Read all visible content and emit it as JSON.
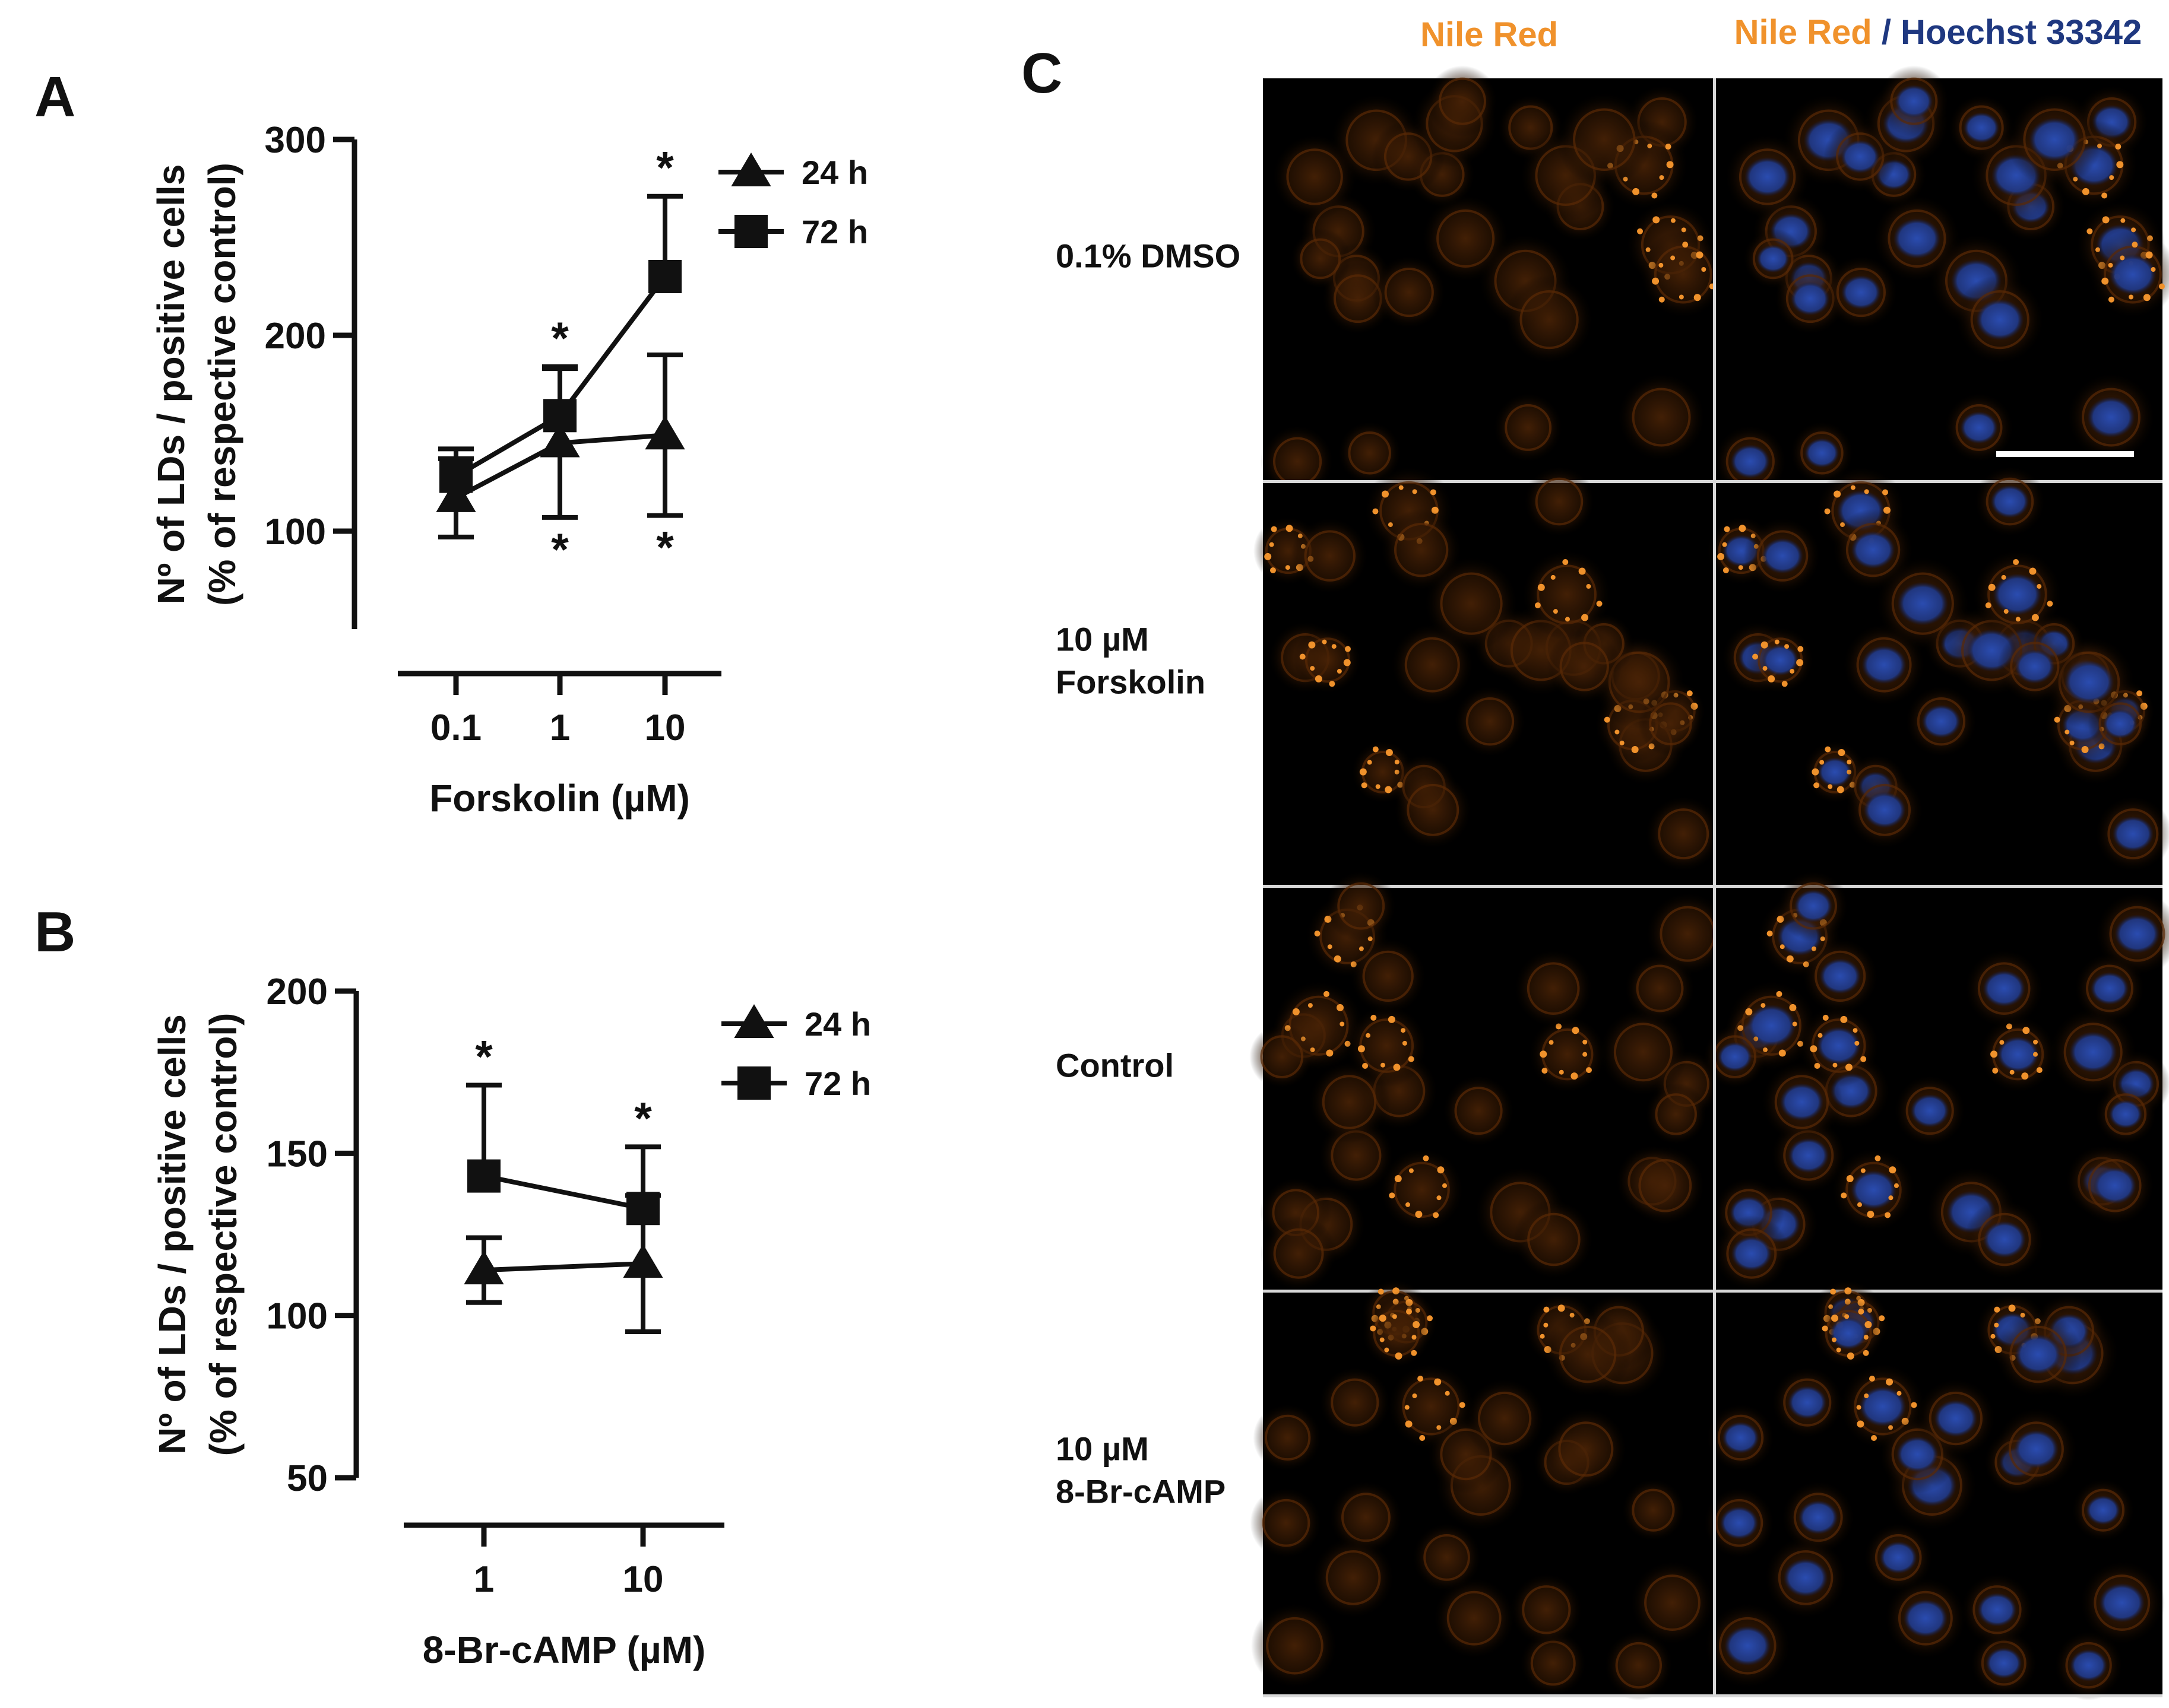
{
  "figure": {
    "panels": {
      "A": "A",
      "B": "B",
      "C": "C"
    }
  },
  "chart_data": [
    {
      "panel": "A",
      "type": "line",
      "xlabel": "Forskolin (µM)",
      "ylabel_lines": [
        "Nº of LDs / positive cells",
        "(% of respective control)"
      ],
      "categories": [
        "0.1",
        "1",
        "10"
      ],
      "ylim": [
        50,
        300
      ],
      "yticks": [
        100,
        200,
        300
      ],
      "series": [
        {
          "name": "24 h",
          "marker": "triangle",
          "values": [
            117,
            145,
            149
          ],
          "errors": [
            20,
            38,
            41
          ],
          "significance": [
            "",
            "*",
            "*"
          ]
        },
        {
          "name": "72 h",
          "marker": "square",
          "values": [
            128,
            159,
            230
          ],
          "errors": [
            14,
            25,
            41
          ],
          "significance": [
            "",
            "*",
            "*"
          ]
        }
      ],
      "legend_position": "top-right",
      "grid": false
    },
    {
      "panel": "B",
      "type": "line",
      "xlabel": "8-Br-cAMP (µM)",
      "ylabel_lines": [
        "Nº of LDs / positive cells",
        "(% of respective control)"
      ],
      "categories": [
        "1",
        "10"
      ],
      "ylim": [
        50,
        200
      ],
      "yticks": [
        50,
        100,
        150,
        200
      ],
      "series": [
        {
          "name": "24 h",
          "marker": "triangle",
          "values": [
            114,
            116
          ],
          "errors": [
            10,
            21
          ],
          "significance": [
            "",
            ""
          ]
        },
        {
          "name": "72 h",
          "marker": "square",
          "values": [
            143,
            133
          ],
          "errors": [
            28,
            19
          ],
          "significance": [
            "*",
            "*"
          ]
        }
      ],
      "legend_position": "top-right",
      "grid": false
    }
  ],
  "micrograph_panel": {
    "col_header_1": "Nile Red",
    "col_header_2": {
      "part1": "Nile Red",
      "separator": " / ",
      "part2": "Hoechst 33342"
    },
    "rows": [
      {
        "label_lines": [
          "0.1% DMSO"
        ]
      },
      {
        "label_lines": [
          "10 µM",
          "Forskolin"
        ]
      },
      {
        "label_lines": [
          "Control"
        ]
      },
      {
        "label_lines": [
          "10 µM",
          "8-Br-cAMP"
        ]
      }
    ],
    "colors": {
      "nile_red": "#f0922c",
      "hoechst": "#1f3880",
      "background": "#000000",
      "cell_glow": "#6a3208"
    }
  }
}
